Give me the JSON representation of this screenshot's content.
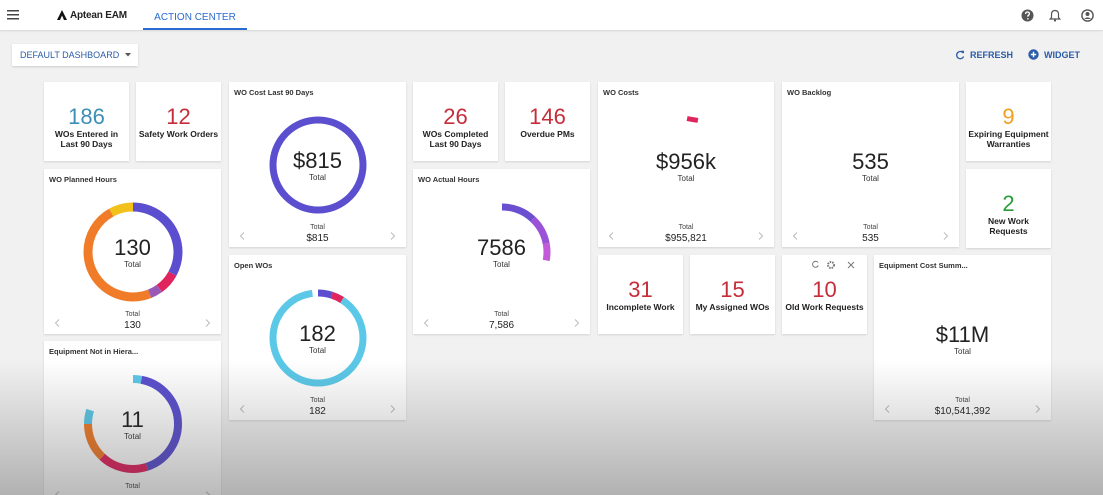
{
  "header": {
    "brand": "Aptean EAM",
    "tab": "ACTION CENTER"
  },
  "toolbar": {
    "dashboard": "DEFAULT DASHBOARD",
    "refresh": "REFRESH",
    "widget": "WIDGET"
  },
  "widgets": [
    {
      "kind": "stat",
      "value": 186,
      "label": "WOs Entered in Last 90 Days",
      "color": "#3d8fb5"
    },
    {
      "kind": "stat",
      "value": 12,
      "label": "Safety Work Orders",
      "color": "#c62d3a"
    },
    {
      "kind": "donut",
      "title": "WO Cost Last 90 Days",
      "value": "$815",
      "value_label": "Total",
      "footer_label": "Total",
      "footer_value": "$815"
    },
    {
      "kind": "stat",
      "value": 26,
      "label": "WOs Completed Last 90 Days",
      "color": "#c62d3a"
    },
    {
      "kind": "stat",
      "value": 146,
      "label": "Overdue PMs",
      "color": "#c62d3a"
    },
    {
      "kind": "plain",
      "title": "WO Costs",
      "value": "$956k",
      "value_label": "Total",
      "footer_label": "Total",
      "footer_value": "$955,821"
    },
    {
      "kind": "plain",
      "title": "WO Backlog",
      "value": 535,
      "value_label": "Total",
      "footer_label": "Total",
      "footer_value": 535
    },
    {
      "kind": "stat",
      "value": 9,
      "label": "Expiring Equipment Warranties",
      "color": "#f0a020"
    },
    {
      "kind": "donut",
      "title": "WO Planned Hours",
      "value": 130,
      "value_label": "Total",
      "footer_label": "Total",
      "footer_value": 130
    },
    {
      "kind": "donut",
      "title": "WO Actual Hours",
      "value": 7586,
      "value_label": "Total",
      "footer_label": "Total",
      "footer_value": "7,586"
    },
    {
      "kind": "stat",
      "value": 2,
      "label": "New Work Requests",
      "color": "#2a9d3a"
    },
    {
      "kind": "donut",
      "title": "Open WOs",
      "value": 182,
      "value_label": "Total",
      "footer_label": "Total",
      "footer_value": 182
    },
    {
      "kind": "stat",
      "value": 31,
      "label": "Incomplete Work",
      "color": "#c62d3a"
    },
    {
      "kind": "stat",
      "value": 15,
      "label": "My Assigned WOs",
      "color": "#c62d3a"
    },
    {
      "kind": "stat",
      "value": 10,
      "label": "Old Work Requests",
      "color": "#c62d3a"
    },
    {
      "kind": "plain",
      "title": "Equipment Cost Summ...",
      "value": "$11M",
      "value_label": "Total",
      "footer_label": "Total",
      "footer_value": "$10,541,392"
    },
    {
      "kind": "donut",
      "title": "Equipment Not in Hiera...",
      "value": 11,
      "value_label": "Total",
      "footer_label": "Total"
    }
  ]
}
